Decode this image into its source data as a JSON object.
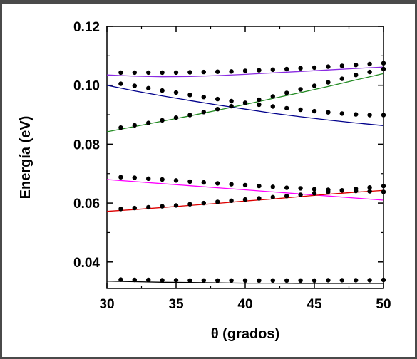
{
  "chart_data": {
    "type": "scatter",
    "title": "",
    "xlabel": "θ (grados)",
    "ylabel": "Energía (eV)",
    "xlim": [
      30,
      50
    ],
    "ylim": [
      0.031,
      0.12
    ],
    "x_ticks": [
      30,
      35,
      40,
      45,
      50
    ],
    "x_tick_labels": [
      "30",
      "35",
      "40",
      "45",
      "50"
    ],
    "y_ticks": [
      0.04,
      0.06,
      0.08,
      0.1,
      0.12
    ],
    "y_tick_labels": [
      "0.04",
      "0.06",
      "0.08",
      "0.10",
      "0.12"
    ],
    "grid": false,
    "legend": "none",
    "lines": [
      {
        "color": "#8a2be2",
        "x": [
          30,
          32,
          34,
          36,
          38,
          40,
          42,
          44,
          46,
          48,
          50
        ],
        "y": [
          0.1035,
          0.1031,
          0.1029,
          0.103,
          0.1033,
          0.1037,
          0.1042,
          0.1047,
          0.1052,
          0.1057,
          0.1062
        ]
      },
      {
        "color": "#228b22",
        "x": [
          30,
          32,
          34,
          36,
          38,
          40,
          42,
          44,
          46,
          48,
          50
        ],
        "y": [
          0.0842,
          0.086,
          0.0878,
          0.0896,
          0.0915,
          0.0935,
          0.0955,
          0.0975,
          0.0996,
          0.1018,
          0.104
        ]
      },
      {
        "color": "#00008b",
        "x": [
          30,
          32,
          34,
          36,
          38,
          40,
          42,
          44,
          46,
          48,
          50
        ],
        "y": [
          0.1,
          0.0981,
          0.0964,
          0.0948,
          0.0933,
          0.0919,
          0.0905,
          0.0893,
          0.0882,
          0.0872,
          0.0863
        ]
      },
      {
        "color": "#ff00ff",
        "x": [
          30,
          32,
          34,
          36,
          38,
          40,
          42,
          44,
          46,
          48,
          50
        ],
        "y": [
          0.068,
          0.0673,
          0.0666,
          0.0659,
          0.0652,
          0.0645,
          0.0638,
          0.0631,
          0.0624,
          0.0617,
          0.061
        ]
      },
      {
        "color": "#dd0000",
        "x": [
          30,
          32,
          34,
          36,
          38,
          40,
          42,
          44,
          46,
          48,
          50
        ],
        "y": [
          0.0572,
          0.0578,
          0.0585,
          0.0592,
          0.0599,
          0.0607,
          0.0614,
          0.0622,
          0.063,
          0.0637,
          0.0643
        ]
      },
      {
        "color": "#000000",
        "x": [
          30,
          32,
          34,
          36,
          38,
          40,
          42,
          44,
          46,
          48,
          50
        ],
        "y": [
          0.0335,
          0.0333,
          0.0331,
          0.033,
          0.0329,
          0.0328,
          0.0328,
          0.0327,
          0.0327,
          0.0327,
          0.0327
        ]
      }
    ],
    "points": [
      {
        "x": [
          31,
          32,
          33,
          34,
          35,
          36,
          37,
          38,
          39,
          40,
          41,
          42,
          43,
          44,
          45,
          46,
          47,
          48,
          49,
          50
        ],
        "y": [
          0.1043,
          0.1043,
          0.1043,
          0.1043,
          0.1043,
          0.1044,
          0.1045,
          0.1046,
          0.1047,
          0.1049,
          0.1051,
          0.1053,
          0.1055,
          0.1058,
          0.106,
          0.1063,
          0.1066,
          0.1069,
          0.1072,
          0.1075
        ]
      },
      {
        "x": [
          31,
          32,
          33,
          34,
          35,
          36,
          37,
          38,
          39,
          40,
          41,
          42,
          43,
          44,
          45,
          46,
          47,
          48,
          49,
          50
        ],
        "y": [
          0.0856,
          0.0864,
          0.0872,
          0.0881,
          0.089,
          0.0899,
          0.0909,
          0.0919,
          0.0929,
          0.094,
          0.0951,
          0.0962,
          0.0974,
          0.0986,
          0.0998,
          0.101,
          0.1022,
          0.1035,
          0.1045,
          0.1055
        ]
      },
      {
        "x": [
          31,
          32,
          33,
          34,
          35,
          36,
          37,
          38,
          39,
          40,
          41,
          42,
          43,
          44,
          45,
          46,
          47,
          48,
          49,
          50
        ],
        "y": [
          0.1005,
          0.0998,
          0.099,
          0.0982,
          0.0975,
          0.0967,
          0.096,
          0.0953,
          0.0946,
          0.094,
          0.0934,
          0.0928,
          0.0922,
          0.0917,
          0.0912,
          0.0908,
          0.0904,
          0.0901,
          0.0899,
          0.0899
        ]
      },
      {
        "x": [
          31,
          32,
          33,
          34,
          35,
          36,
          37,
          38,
          39,
          40,
          41,
          42,
          43,
          44,
          45,
          46,
          47,
          48,
          49,
          50
        ],
        "y": [
          0.0688,
          0.0686,
          0.0683,
          0.068,
          0.0677,
          0.0673,
          0.067,
          0.0667,
          0.0664,
          0.0661,
          0.0658,
          0.0655,
          0.0652,
          0.065,
          0.0647,
          0.0645,
          0.0643,
          0.0641,
          0.064,
          0.0638
        ]
      },
      {
        "x": [
          31,
          32,
          33,
          34,
          35,
          36,
          37,
          38,
          39,
          40,
          41,
          42,
          43,
          44,
          45,
          46,
          47,
          48,
          49,
          50
        ],
        "y": [
          0.058,
          0.0583,
          0.0586,
          0.0589,
          0.0592,
          0.0596,
          0.06,
          0.0604,
          0.0608,
          0.0612,
          0.0616,
          0.062,
          0.0624,
          0.0628,
          0.0633,
          0.0638,
          0.0643,
          0.0648,
          0.0653,
          0.0658
        ]
      },
      {
        "x": [
          31,
          32,
          33,
          34,
          35,
          36,
          37,
          38,
          39,
          40,
          41,
          42,
          43,
          44,
          45,
          46,
          47,
          48,
          49,
          50
        ],
        "y": [
          0.034,
          0.0339,
          0.0339,
          0.0338,
          0.0338,
          0.0337,
          0.0337,
          0.0337,
          0.0337,
          0.0337,
          0.0337,
          0.0337,
          0.0337,
          0.0337,
          0.0337,
          0.0338,
          0.0338,
          0.0338,
          0.0338,
          0.0339
        ]
      }
    ],
    "point_color": "#000000"
  }
}
